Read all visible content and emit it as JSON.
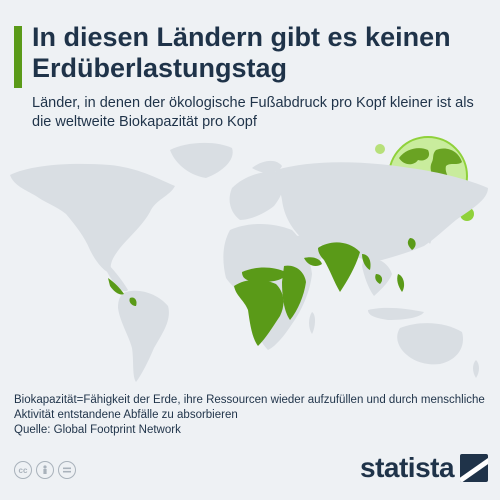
{
  "title": "In diesen Ländern gibt es keinen Erdüberlastungstag",
  "subtitle": "Länder, in denen der ökologische Fußabdruck pro Kopf kleiner ist als die weltweite Biokapazität pro Kopf",
  "footnote": {
    "definition": "Biokapazität=Fähigkeit der Erde, ihre Ressourcen wieder aufzufüllen und durch menschliche Aktivität entstandene Abfälle zu absorbieren",
    "source": "Quelle: Global Footprint Network"
  },
  "brand": {
    "name": "statista"
  },
  "license_icons": [
    "cc-icon",
    "person-icon",
    "equals-icon"
  ],
  "colors": {
    "highlight": "#5a9a18",
    "land": "#d9dee3",
    "title": "#1f3349",
    "accent": "#5a9a18",
    "globe": "#c9ec9d"
  },
  "map": {
    "highlighted_regions": [
      "Zentralamerika",
      "Andenregion",
      "Subsahara-Afrika",
      "Ostafrika",
      "Jemen",
      "Südasien",
      "Myanmar",
      "Kambodscha",
      "Philippinen",
      "Nordkorea"
    ]
  }
}
